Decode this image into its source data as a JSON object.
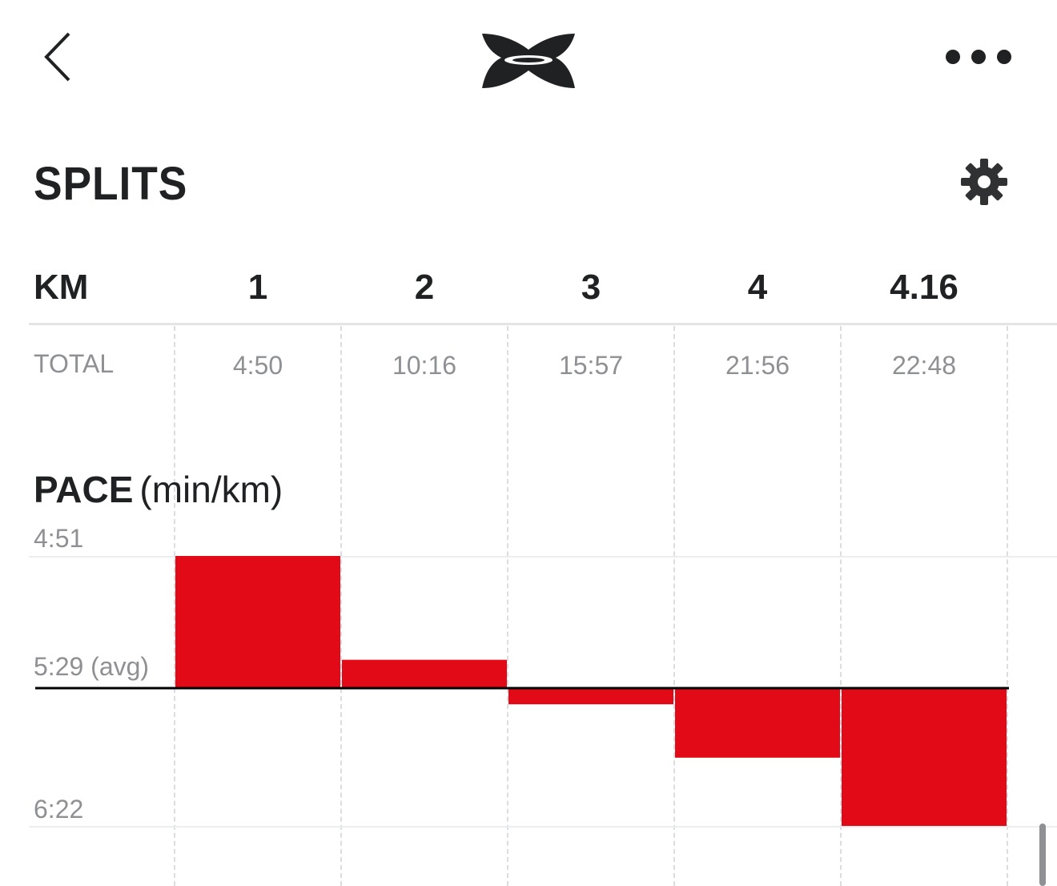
{
  "header": {
    "back_icon": "chevron-left-icon",
    "logo": "under-armour-logo",
    "more_icon": "more-horizontal-icon"
  },
  "splits": {
    "title": "SPLITS",
    "settings_icon": "gear-icon",
    "km_label": "KM",
    "columns": [
      "1",
      "2",
      "3",
      "4",
      "4.16"
    ],
    "total_label": "TOTAL",
    "totals": [
      "4:50",
      "10:16",
      "15:57",
      "21:56",
      "22:48"
    ]
  },
  "pace": {
    "title": "PACE",
    "unit": "(min/km)",
    "ticks": {
      "top": "4:51",
      "avg": "5:29 (avg)",
      "bottom": "6:22"
    }
  },
  "colors": {
    "bar": "#e20a16",
    "avg_line": "#000000",
    "text": "#1f2123",
    "muted": "#8e9093"
  },
  "chart_data": {
    "type": "bar",
    "categories": [
      "1",
      "2",
      "3",
      "4",
      "4.16"
    ],
    "values_seconds_per_km": [
      291,
      326,
      341,
      359,
      382
    ],
    "values_label": [
      "4:51",
      "5:26",
      "5:41",
      "5:59",
      "6:22"
    ],
    "baseline_seconds": 329,
    "ylim_seconds": [
      291,
      382
    ],
    "y_ticks": [
      "4:51",
      "5:29 (avg)",
      "6:22"
    ],
    "ylabel": "PACE (min/km)"
  }
}
